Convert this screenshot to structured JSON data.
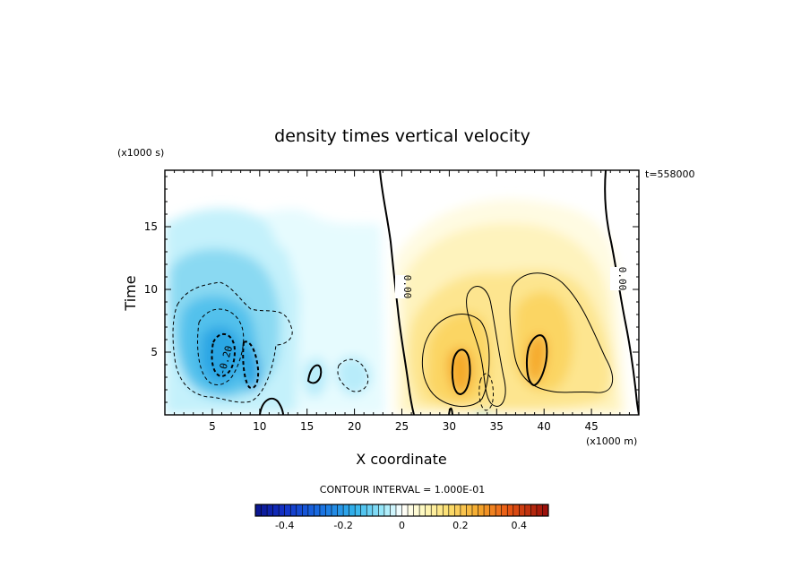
{
  "chart_data": {
    "type": "heatmap",
    "title": "density times vertical velocity",
    "xlabel": "X coordinate",
    "ylabel": "Time",
    "x_units_label": "(x1000 m)",
    "y_units_label": "(x1000 s)",
    "time_annotation": "t=558000",
    "xlim": [
      0,
      50
    ],
    "ylim": [
      0,
      19.5
    ],
    "x_ticks": [
      5,
      10,
      15,
      20,
      25,
      30,
      35,
      40,
      45
    ],
    "x_tick_labels": [
      "5",
      "10",
      "15",
      "20",
      "25",
      "30",
      "35",
      "40",
      "45"
    ],
    "y_ticks": [
      5,
      10,
      15
    ],
    "y_tick_labels": [
      "5",
      "10",
      "15"
    ],
    "contour_interval_text": "CONTOUR INTERVAL = 1.000E-01",
    "contour_labels": [
      {
        "text": "0.00",
        "x": 24.6,
        "y": 10.6
      },
      {
        "text": "0.00",
        "x": 47.3,
        "y": 11.3
      },
      {
        "text": "-0.20",
        "x": 6.8,
        "y": 4.7
      }
    ],
    "colorbar": {
      "range": [
        -0.5,
        0.5
      ],
      "ticks": [
        -0.4,
        -0.2,
        0,
        0.2,
        0.4
      ],
      "tick_labels": [
        "-0.4",
        "-0.2",
        "0",
        "0.2",
        "0.4"
      ]
    },
    "features": [
      {
        "x": 6.3,
        "y": 5.3,
        "value": -0.27
      },
      {
        "x": 9.0,
        "y": 3.6,
        "value": -0.22
      },
      {
        "x": 31.0,
        "y": 4.0,
        "value": 0.32
      },
      {
        "x": 39.5,
        "y": 4.8,
        "value": 0.33
      },
      {
        "x": 33.8,
        "y": 2.0,
        "value": -0.15
      }
    ],
    "colors": {
      "negative_strong": "#1a2fc8",
      "negative_mid": "#3cb4ec",
      "zero": "#ffffff",
      "positive_mid": "#f8cc44",
      "positive_strong": "#c81810"
    }
  }
}
